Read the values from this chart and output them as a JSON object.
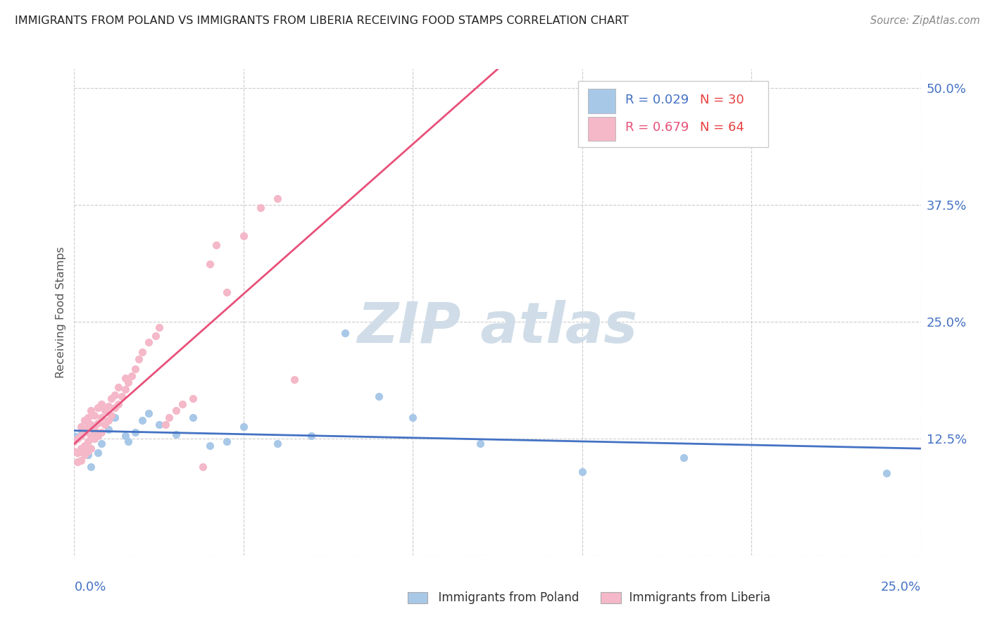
{
  "title": "IMMIGRANTS FROM POLAND VS IMMIGRANTS FROM LIBERIA RECEIVING FOOD STAMPS CORRELATION CHART",
  "source": "Source: ZipAtlas.com",
  "ylabel": "Receiving Food Stamps",
  "yticks": [
    0.0,
    0.125,
    0.25,
    0.375,
    0.5
  ],
  "ytick_labels": [
    "",
    "12.5%",
    "25.0%",
    "37.5%",
    "50.0%"
  ],
  "xlim": [
    0.0,
    0.25
  ],
  "ylim": [
    0.0,
    0.52
  ],
  "xtick_left": "0.0%",
  "xtick_right": "25.0%",
  "poland_R": 0.029,
  "poland_N": 30,
  "liberia_R": 0.679,
  "liberia_N": 64,
  "poland_color": "#a8c8e8",
  "liberia_color": "#f4b8c8",
  "poland_line_color": "#4472c4",
  "liberia_line_color": "#e8507a",
  "axis_label_color": "#4472c4",
  "background_color": "#ffffff",
  "grid_color": "#cccccc",
  "title_color": "#222222",
  "source_color": "#888888",
  "watermark_color": "#d0dde8",
  "legend_text_color_R_poland": "#4472c4",
  "legend_text_color_N_poland": "#e84040",
  "legend_text_color_R_liberia": "#e8507a",
  "legend_text_color_N_liberia": "#e84040",
  "poland_scatter": [
    [
      0.0,
      0.128
    ],
    [
      0.002,
      0.13
    ],
    [
      0.003,
      0.112
    ],
    [
      0.004,
      0.108
    ],
    [
      0.005,
      0.095
    ],
    [
      0.006,
      0.132
    ],
    [
      0.007,
      0.11
    ],
    [
      0.008,
      0.12
    ],
    [
      0.01,
      0.135
    ],
    [
      0.012,
      0.148
    ],
    [
      0.015,
      0.128
    ],
    [
      0.016,
      0.122
    ],
    [
      0.018,
      0.132
    ],
    [
      0.02,
      0.145
    ],
    [
      0.022,
      0.152
    ],
    [
      0.025,
      0.14
    ],
    [
      0.03,
      0.13
    ],
    [
      0.035,
      0.148
    ],
    [
      0.04,
      0.118
    ],
    [
      0.045,
      0.122
    ],
    [
      0.05,
      0.138
    ],
    [
      0.06,
      0.12
    ],
    [
      0.07,
      0.128
    ],
    [
      0.08,
      0.238
    ],
    [
      0.09,
      0.17
    ],
    [
      0.1,
      0.148
    ],
    [
      0.12,
      0.12
    ],
    [
      0.15,
      0.09
    ],
    [
      0.18,
      0.105
    ],
    [
      0.24,
      0.088
    ]
  ],
  "liberia_scatter": [
    [
      0.0,
      0.112
    ],
    [
      0.0,
      0.122
    ],
    [
      0.001,
      0.1
    ],
    [
      0.001,
      0.11
    ],
    [
      0.001,
      0.125
    ],
    [
      0.002,
      0.102
    ],
    [
      0.002,
      0.115
    ],
    [
      0.002,
      0.128
    ],
    [
      0.002,
      0.138
    ],
    [
      0.003,
      0.108
    ],
    [
      0.003,
      0.118
    ],
    [
      0.003,
      0.132
    ],
    [
      0.003,
      0.145
    ],
    [
      0.004,
      0.112
    ],
    [
      0.004,
      0.122
    ],
    [
      0.004,
      0.138
    ],
    [
      0.004,
      0.148
    ],
    [
      0.005,
      0.115
    ],
    [
      0.005,
      0.128
    ],
    [
      0.005,
      0.14
    ],
    [
      0.005,
      0.155
    ],
    [
      0.006,
      0.125
    ],
    [
      0.006,
      0.135
    ],
    [
      0.006,
      0.15
    ],
    [
      0.007,
      0.128
    ],
    [
      0.007,
      0.142
    ],
    [
      0.007,
      0.158
    ],
    [
      0.008,
      0.132
    ],
    [
      0.008,
      0.148
    ],
    [
      0.008,
      0.162
    ],
    [
      0.009,
      0.14
    ],
    [
      0.009,
      0.155
    ],
    [
      0.01,
      0.145
    ],
    [
      0.01,
      0.16
    ],
    [
      0.011,
      0.15
    ],
    [
      0.011,
      0.168
    ],
    [
      0.012,
      0.158
    ],
    [
      0.012,
      0.172
    ],
    [
      0.013,
      0.162
    ],
    [
      0.013,
      0.18
    ],
    [
      0.014,
      0.17
    ],
    [
      0.015,
      0.178
    ],
    [
      0.015,
      0.19
    ],
    [
      0.016,
      0.185
    ],
    [
      0.017,
      0.192
    ],
    [
      0.018,
      0.2
    ],
    [
      0.019,
      0.21
    ],
    [
      0.02,
      0.218
    ],
    [
      0.022,
      0.228
    ],
    [
      0.024,
      0.235
    ],
    [
      0.025,
      0.244
    ],
    [
      0.027,
      0.14
    ],
    [
      0.028,
      0.148
    ],
    [
      0.03,
      0.155
    ],
    [
      0.032,
      0.162
    ],
    [
      0.035,
      0.168
    ],
    [
      0.038,
      0.095
    ],
    [
      0.04,
      0.312
    ],
    [
      0.042,
      0.332
    ],
    [
      0.045,
      0.282
    ],
    [
      0.05,
      0.342
    ],
    [
      0.055,
      0.372
    ],
    [
      0.06,
      0.382
    ],
    [
      0.065,
      0.188
    ]
  ]
}
